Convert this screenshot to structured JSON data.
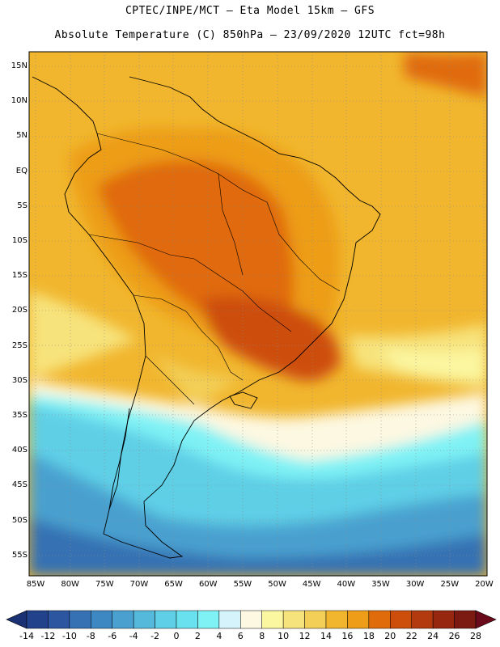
{
  "header": {
    "line1": "CPTEC/INPE/MCT –  Eta Model 15km – GFS",
    "line2": "Absolute Temperature (C) 850hPa – 23/09/2020 12UTC fct=98h"
  },
  "map": {
    "lat_labels": [
      "15N",
      "10N",
      "5N",
      "EQ",
      "5S",
      "10S",
      "15S",
      "20S",
      "25S",
      "30S",
      "35S",
      "40S",
      "45S",
      "50S",
      "55S"
    ],
    "lon_labels": [
      "85W",
      "80W",
      "75W",
      "70W",
      "65W",
      "60W",
      "55W",
      "50W",
      "45W",
      "40W",
      "35W",
      "30W",
      "25W",
      "20W"
    ]
  },
  "colorbar": {
    "labels": [
      "-14",
      "-12",
      "-10",
      "-8",
      "-6",
      "-4",
      "-2",
      "0",
      "2",
      "4",
      "6",
      "8",
      "10",
      "12",
      "14",
      "16",
      "18",
      "20",
      "22",
      "24",
      "26",
      "28"
    ],
    "colors": [
      "#22438c",
      "#2d56a0",
      "#3571b3",
      "#3d87c2",
      "#4aa0cf",
      "#55b9dc",
      "#5ecfe6",
      "#6ae1ee",
      "#7ff2f5",
      "#d4f3fb",
      "#fdf8e1",
      "#fbf6a0",
      "#f7e37c",
      "#f3cf57",
      "#f1b62e",
      "#ed9d17",
      "#e06b0a",
      "#cd4d0b",
      "#b33a0e",
      "#98270f",
      "#7c1a12"
    ],
    "under_color": "#1a3173",
    "over_color": "#6b0a1a"
  }
}
